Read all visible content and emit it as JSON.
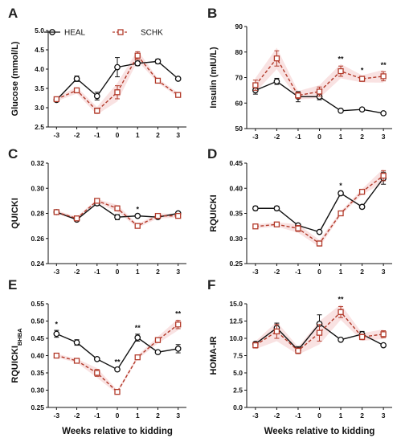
{
  "legend": {
    "heal": "HEAL",
    "schk": "SCHK"
  },
  "colors": {
    "heal": "#111111",
    "schk": "#b23a2a",
    "schk_band": "#f6d6d6"
  },
  "chart_data": [
    {
      "letter": "A",
      "type": "line",
      "ylabel": "Glucose (mmol/L)",
      "xlabel": "",
      "ylim": [
        2.5,
        5.0
      ],
      "yticks": [
        "2.5",
        "3.0",
        "3.5",
        "4.0",
        "4.5",
        "5.0"
      ],
      "categories": [
        "-3",
        "-2",
        "-1",
        "0",
        "1",
        "2",
        "3"
      ],
      "series": [
        {
          "name": "HEAL",
          "values": [
            3.2,
            3.75,
            3.3,
            4.05,
            4.15,
            4.2,
            3.75
          ],
          "err": [
            0.04,
            0.07,
            0.1,
            0.25,
            0.06,
            0.06,
            0.03
          ]
        },
        {
          "name": "SCHK",
          "values": [
            3.22,
            3.45,
            2.92,
            3.4,
            4.35,
            3.7,
            3.33
          ],
          "err": [
            0.04,
            0.06,
            0.07,
            0.17,
            0.1,
            0.04,
            0.04
          ]
        }
      ],
      "significance": []
    },
    {
      "letter": "B",
      "type": "line",
      "ylabel": "Insulin (mIU/L)",
      "xlabel": "",
      "ylim": [
        50,
        90
      ],
      "yticks": [
        "50",
        "60",
        "70",
        "80",
        "90"
      ],
      "categories": [
        "-3",
        "-2",
        "-1",
        "0",
        "1",
        "2",
        "3"
      ],
      "series": [
        {
          "name": "HEAL",
          "values": [
            65,
            68.5,
            62.5,
            62.5,
            57,
            57.5,
            56
          ],
          "err": [
            1.5,
            1.2,
            2.0,
            1.2,
            0.5,
            0.6,
            0.6
          ]
        },
        {
          "name": "SCHK",
          "values": [
            67,
            77.5,
            63,
            64.5,
            72.5,
            69.5,
            70.5
          ],
          "err": [
            2.0,
            3.0,
            1.2,
            1.8,
            2.0,
            1.0,
            1.8
          ]
        }
      ],
      "significance": [
        {
          "x": "1",
          "label": "**"
        },
        {
          "x": "2",
          "label": "*"
        },
        {
          "x": "3",
          "label": "**"
        }
      ]
    },
    {
      "letter": "C",
      "type": "line",
      "ylabel": "QUICKI",
      "xlabel": "",
      "ylim": [
        0.24,
        0.32
      ],
      "yticks": [
        "0.24",
        "0.26",
        "0.28",
        "0.30",
        "0.32"
      ],
      "categories": [
        "-3",
        "-2",
        "-1",
        "0",
        "1",
        "2",
        "3"
      ],
      "series": [
        {
          "name": "HEAL",
          "values": [
            0.281,
            0.275,
            0.288,
            0.277,
            0.278,
            0.277,
            0.28
          ],
          "err": [
            0.001,
            0.001,
            0.0015,
            0.002,
            0.001,
            0.001,
            0.001
          ]
        },
        {
          "name": "SCHK",
          "values": [
            0.281,
            0.276,
            0.29,
            0.284,
            0.27,
            0.278,
            0.278
          ],
          "err": [
            0.001,
            0.001,
            0.001,
            0.002,
            0.001,
            0.0015,
            0.001
          ]
        }
      ],
      "significance": [
        {
          "x": "1",
          "label": "*"
        }
      ]
    },
    {
      "letter": "D",
      "type": "line",
      "ylabel": "RQUICKI",
      "xlabel": "",
      "ylim": [
        0.25,
        0.45
      ],
      "yticks": [
        "0.25",
        "0.30",
        "0.35",
        "0.40",
        "0.45"
      ],
      "categories": [
        "-3",
        "-2",
        "-1",
        "0",
        "1",
        "2",
        "3"
      ],
      "series": [
        {
          "name": "HEAL",
          "values": [
            0.36,
            0.36,
            0.326,
            0.313,
            0.39,
            0.363,
            0.42
          ],
          "err": [
            0.004,
            0.004,
            0.003,
            0.003,
            0.004,
            0.003,
            0.012
          ]
        },
        {
          "name": "SCHK",
          "values": [
            0.324,
            0.328,
            0.32,
            0.29,
            0.35,
            0.393,
            0.425
          ],
          "err": [
            0.003,
            0.003,
            0.006,
            0.005,
            0.003,
            0.004,
            0.01
          ]
        }
      ],
      "significance": [
        {
          "x": "1",
          "label": "*"
        }
      ]
    },
    {
      "letter": "E",
      "type": "line",
      "ylabel": "RQUICKI",
      "ylabel_sub": "BHBA",
      "xlabel": "Weeks relative to kidding",
      "ylim": [
        0.25,
        0.55
      ],
      "yticks": [
        "0.25",
        "0.30",
        "0.35",
        "0.40",
        "0.45",
        "0.50",
        "0.55"
      ],
      "categories": [
        "-3",
        "-2",
        "-1",
        "0",
        "1",
        "2",
        "3"
      ],
      "series": [
        {
          "name": "HEAL",
          "values": [
            0.463,
            0.438,
            0.39,
            0.36,
            0.452,
            0.41,
            0.42
          ],
          "err": [
            0.01,
            0.008,
            0.005,
            0.005,
            0.01,
            0.004,
            0.012
          ]
        },
        {
          "name": "SCHK",
          "values": [
            0.4,
            0.385,
            0.35,
            0.295,
            0.395,
            0.445,
            0.49
          ],
          "err": [
            0.004,
            0.004,
            0.01,
            0.004,
            0.004,
            0.007,
            0.012
          ]
        }
      ],
      "significance": [
        {
          "x": "-3",
          "label": "*"
        },
        {
          "x": "0",
          "label": "**"
        },
        {
          "x": "1",
          "label": "**"
        },
        {
          "x": "3",
          "label": "**"
        }
      ]
    },
    {
      "letter": "F",
      "type": "line",
      "ylabel": "HOMA-IR",
      "xlabel": "Weeks relative to kidding",
      "ylim": [
        0.0,
        15.0
      ],
      "yticks": [
        "0.0",
        "2.5",
        "5.0",
        "7.5",
        "10.0",
        "12.5",
        "15.0"
      ],
      "categories": [
        "-3",
        "-2",
        "-1",
        "0",
        "1",
        "2",
        "3"
      ],
      "series": [
        {
          "name": "HEAL",
          "values": [
            9.2,
            11.5,
            8.3,
            12.1,
            9.8,
            10.6,
            9.0
          ],
          "err": [
            0.3,
            0.7,
            0.5,
            1.3,
            0.2,
            0.4,
            0.2
          ]
        },
        {
          "name": "SCHK",
          "values": [
            9.0,
            11.0,
            8.2,
            10.8,
            13.8,
            10.2,
            10.6
          ],
          "err": [
            0.4,
            1.0,
            0.4,
            1.2,
            0.8,
            0.4,
            0.5
          ]
        }
      ],
      "significance": [
        {
          "x": "1",
          "label": "**"
        }
      ]
    }
  ]
}
